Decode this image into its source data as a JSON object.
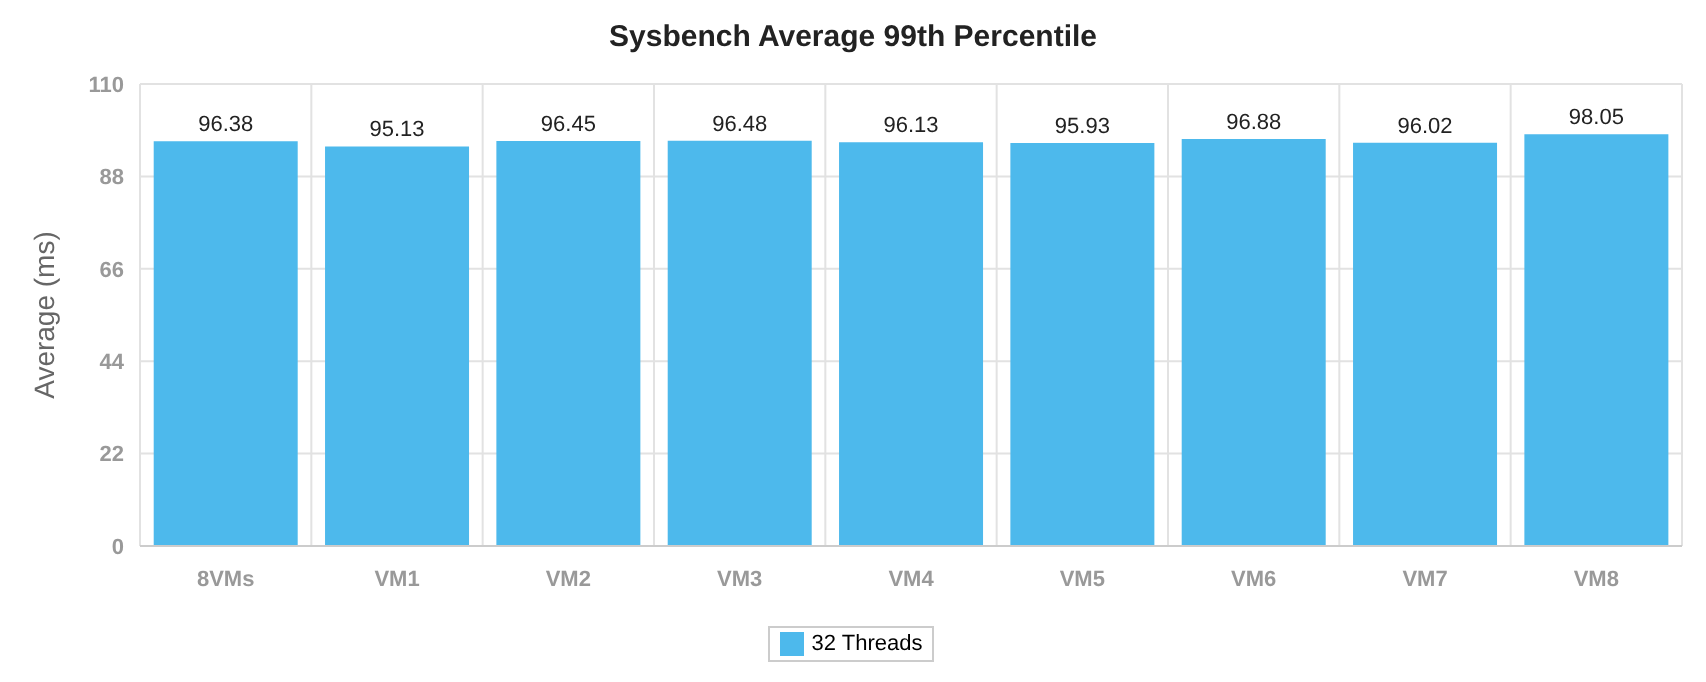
{
  "chart_data": {
    "type": "bar",
    "title": "Sysbench Average 99th Percentile",
    "ylabel": "Average  (ms)",
    "categories": [
      "8VMs",
      "VM1",
      "VM2",
      "VM3",
      "VM4",
      "VM5",
      "VM6",
      "VM7",
      "VM8"
    ],
    "series": [
      {
        "name": "32 Threads",
        "color": "#4db9ec",
        "values": [
          96.38,
          95.13,
          96.45,
          96.48,
          96.13,
          95.93,
          96.88,
          96.02,
          98.05
        ]
      }
    ],
    "ylim": [
      0,
      110
    ],
    "yticks": [
      0,
      22,
      44,
      66,
      88,
      110
    ],
    "grid": true,
    "legend": "bottom",
    "data_labels": true
  }
}
